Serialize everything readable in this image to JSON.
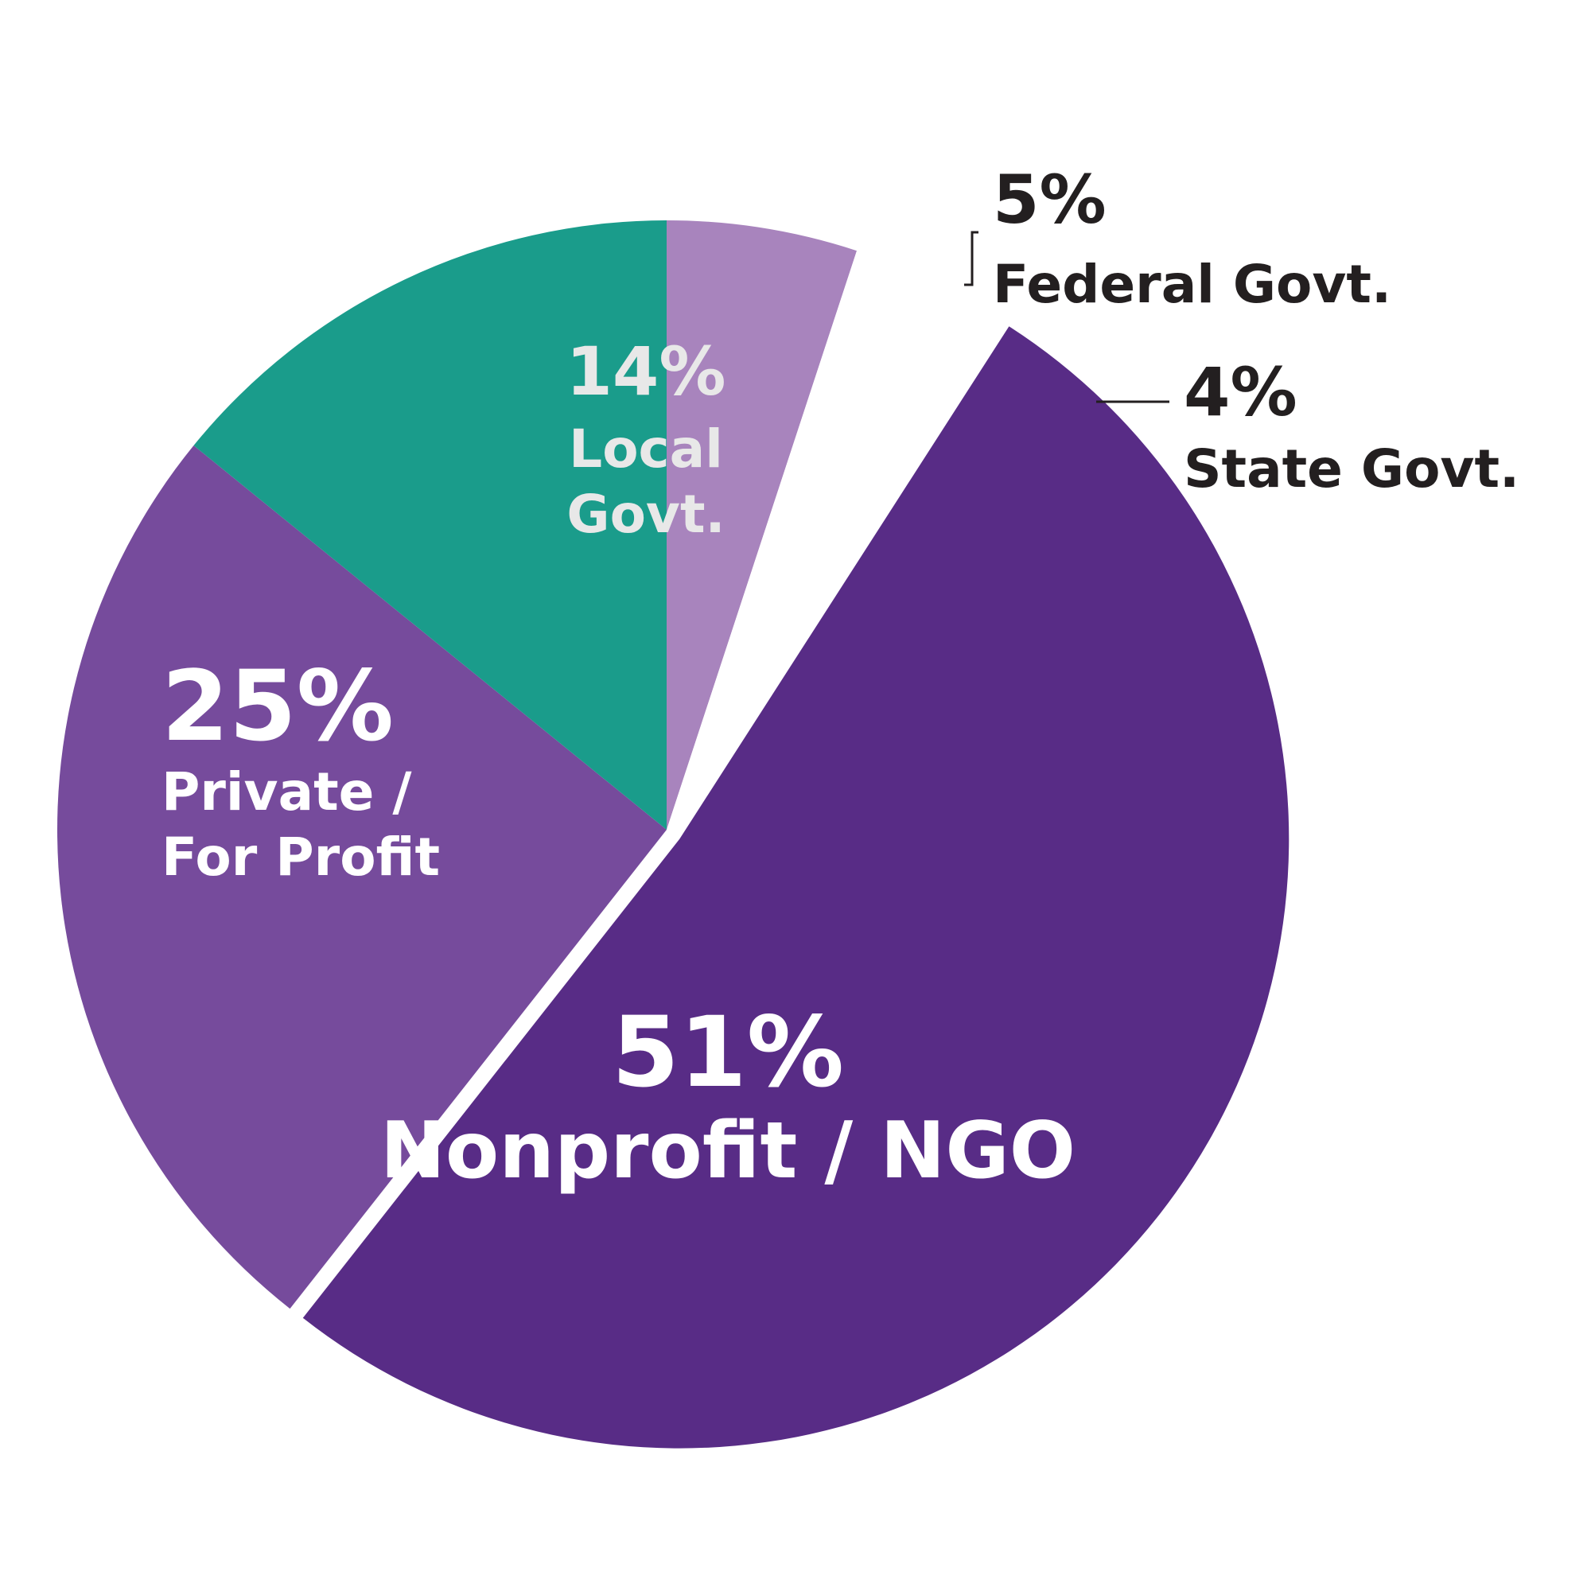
{
  "chart_data": {
    "type": "pie",
    "start": "12 o'clock, clockwise",
    "slices": [
      {
        "pct_label": "5%",
        "name": "Federal Govt.",
        "name_lines": [
          "Federal Govt."
        ],
        "value": 5,
        "color": "#a884bd",
        "exploded": false,
        "label_color": "#231f20",
        "label_position": "outside"
      },
      {
        "pct_label": "4%",
        "name": "State Govt.",
        "name_lines": [
          "State Govt."
        ],
        "value": 4,
        "color": "#ffffff",
        "exploded": false,
        "label_color": "#231f20",
        "label_position": "outside"
      },
      {
        "pct_label": "51%",
        "name": "Nonprofit / NGO",
        "name_lines": [
          "Nonprofit / NGO"
        ],
        "value": 51,
        "color": "#582c86",
        "exploded": true,
        "label_color": "#ffffff",
        "label_position": "inside"
      },
      {
        "pct_label": "25%",
        "name": "Private / For Profit",
        "name_lines": [
          "Private /",
          "For Profit"
        ],
        "value": 25,
        "color": "#764b9c",
        "exploded": false,
        "label_color": "#ffffff",
        "label_position": "inside"
      },
      {
        "pct_label": "14%",
        "name": "Local Govt.",
        "name_lines": [
          "Local",
          "Govt."
        ],
        "value": 14,
        "color": "#1a9c8b",
        "exploded": false,
        "label_color": "#e8e8e8",
        "label_position": "inside"
      }
    ]
  }
}
